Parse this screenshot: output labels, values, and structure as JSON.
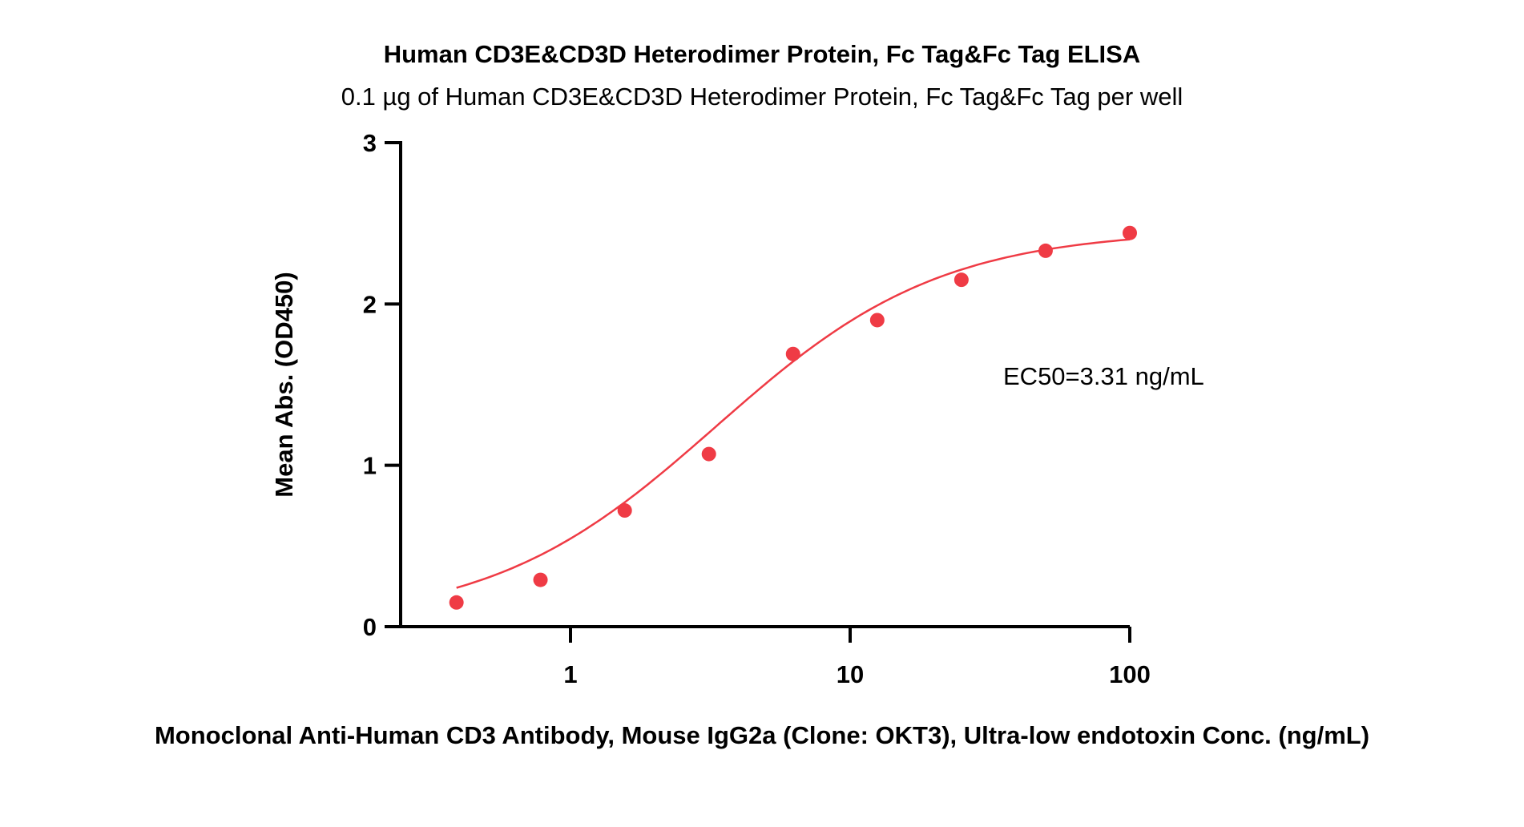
{
  "chart_data": {
    "type": "scatter",
    "title": "Human CD3E&CD3D Heterodimer Protein, Fc Tag&Fc Tag ELISA",
    "subtitle": "0.1 µg of Human CD3E&CD3D Heterodimer Protein, Fc Tag&Fc Tag per well",
    "xlabel": "Monoclonal Anti-Human CD3 Antibody, Mouse IgG2a (Clone: OKT3), Ultra-low endotoxin Conc. (ng/mL)",
    "ylabel": "Mean Abs. (OD450)",
    "xscale": "log",
    "xlim": [
      0.25,
      100
    ],
    "ylim": [
      0,
      3
    ],
    "xticks": [
      1,
      10,
      100
    ],
    "xtick_labels": [
      "1",
      "10",
      "100"
    ],
    "yticks": [
      0,
      1,
      2,
      3
    ],
    "ytick_labels": [
      "0",
      "1",
      "2",
      "3"
    ],
    "grid": false,
    "annotation": "EC50=3.31 ng/mL",
    "series": [
      {
        "color": "#ef3b45",
        "x": [
          0.391,
          0.781,
          1.563,
          3.125,
          6.25,
          12.5,
          25,
          50,
          100
        ],
        "y": [
          0.15,
          0.29,
          0.72,
          1.07,
          1.69,
          1.9,
          2.15,
          2.33,
          2.44
        ]
      }
    ],
    "fit": {
      "type": "4PL",
      "bottom": 0.02,
      "top": 2.46,
      "ec50": 3.31,
      "hill": 1.08
    }
  }
}
